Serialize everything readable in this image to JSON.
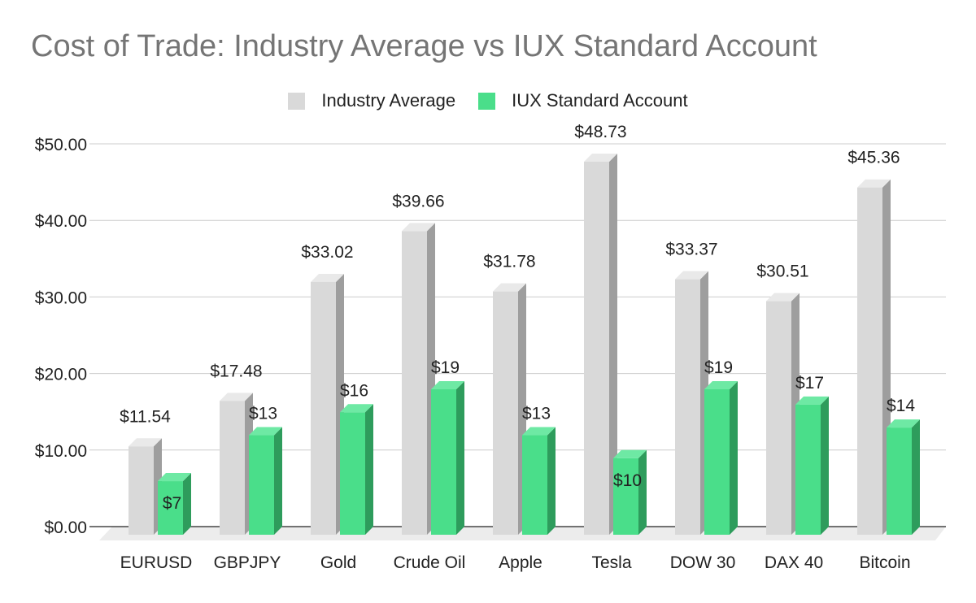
{
  "chart_data": {
    "type": "bar",
    "title": "Cost of Trade: Industry Average vs IUX Standard Account",
    "xlabel": "",
    "ylabel": "",
    "categories": [
      "EURUSD",
      "GBPJPY",
      "Gold",
      "Crude Oil",
      "Apple",
      "Tesla",
      "DOW 30",
      "DAX 40",
      "Bitcoin"
    ],
    "series": [
      {
        "name": "Industry Average",
        "values": [
          11.54,
          17.48,
          33.02,
          39.66,
          31.78,
          48.73,
          33.37,
          30.51,
          45.36
        ],
        "labels": [
          "$11.54",
          "$17.48",
          "$33.02",
          "$39.66",
          "$31.78",
          "$48.73",
          "$33.37",
          "$30.51",
          "$45.36"
        ],
        "color": "#d9d9d9"
      },
      {
        "name": "IUX Standard Account",
        "values": [
          7,
          13,
          16,
          19,
          13,
          10,
          19,
          17,
          14
        ],
        "labels": [
          "$7",
          "$13",
          "$16",
          "$19",
          "$13",
          "$10",
          "$19",
          "$17",
          "$14"
        ],
        "color": "#4ade8a"
      }
    ],
    "ylim": [
      0,
      50
    ],
    "yticks": [
      0,
      10,
      20,
      30,
      40,
      50
    ],
    "ytick_labels": [
      "$0.00",
      "$10.00",
      "$20.00",
      "$30.00",
      "$40.00",
      "$50.00"
    ],
    "grid": true,
    "legend_position": "top-center",
    "style": "3d-bars"
  }
}
